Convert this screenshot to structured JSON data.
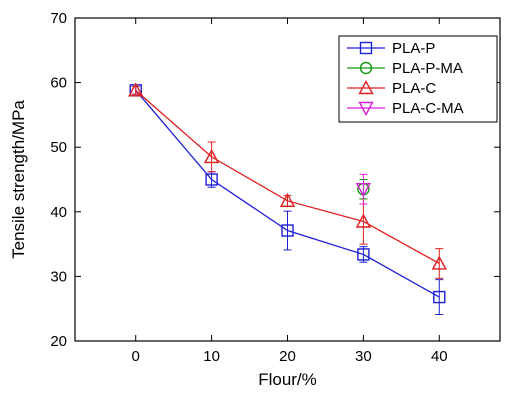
{
  "chart_data": {
    "type": "line",
    "xlabel": "Flour/%",
    "ylabel": "Tensile strength/MPa",
    "xlim": [
      -8,
      48
    ],
    "ylim": [
      20,
      70
    ],
    "xticks": [
      0,
      10,
      20,
      30,
      40
    ],
    "yticks": [
      20,
      30,
      40,
      50,
      60,
      70
    ],
    "legend_position": "top-right",
    "series": [
      {
        "name": "PLA-P",
        "color": "#1f1fd6",
        "marker": "square",
        "points": [
          {
            "x": 0,
            "y": 58.8,
            "err": 0.6
          },
          {
            "x": 10,
            "y": 45.0,
            "err": 1.2
          },
          {
            "x": 20,
            "y": 37.1,
            "err": 3.0
          },
          {
            "x": 30,
            "y": 33.4,
            "err": 1.2
          },
          {
            "x": 40,
            "y": 26.8,
            "err": 2.7
          }
        ]
      },
      {
        "name": "PLA-P-MA",
        "color": "#139a13",
        "marker": "circle",
        "points": [
          {
            "x": 30,
            "y": 43.5,
            "err": 1.5
          }
        ]
      },
      {
        "name": "PLA-C",
        "color": "#e11f1f",
        "marker": "triangle-up",
        "points": [
          {
            "x": 0,
            "y": 58.8,
            "err": 0.6
          },
          {
            "x": 10,
            "y": 48.5,
            "err": 2.3
          },
          {
            "x": 20,
            "y": 41.7,
            "err": 0.8
          },
          {
            "x": 30,
            "y": 38.5,
            "err": 3.5
          },
          {
            "x": 40,
            "y": 32.0,
            "err": 2.3
          }
        ]
      },
      {
        "name": "PLA-C-MA",
        "color": "#d61fd6",
        "marker": "triangle-down",
        "points": [
          {
            "x": 30,
            "y": 43.5,
            "err": 2.3
          }
        ]
      }
    ]
  }
}
